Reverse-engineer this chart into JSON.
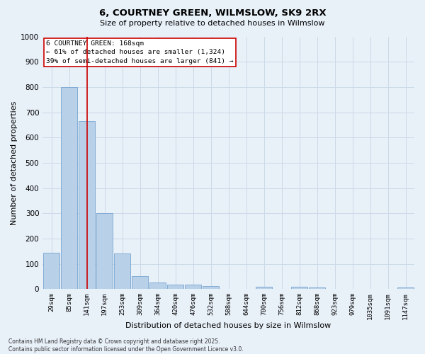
{
  "title_line1": "6, COURTNEY GREEN, WILMSLOW, SK9 2RX",
  "title_line2": "Size of property relative to detached houses in Wilmslow",
  "xlabel": "Distribution of detached houses by size in Wilmslow",
  "ylabel": "Number of detached properties",
  "bar_color": "#b8d0e8",
  "bar_edge_color": "#6699cc",
  "bin_labels": [
    "29sqm",
    "85sqm",
    "141sqm",
    "197sqm",
    "253sqm",
    "309sqm",
    "364sqm",
    "420sqm",
    "476sqm",
    "532sqm",
    "588sqm",
    "644sqm",
    "700sqm",
    "756sqm",
    "812sqm",
    "868sqm",
    "923sqm",
    "979sqm",
    "1035sqm",
    "1091sqm",
    "1147sqm"
  ],
  "bar_values": [
    145,
    800,
    665,
    300,
    140,
    52,
    27,
    18,
    18,
    13,
    0,
    0,
    10,
    0,
    10,
    7,
    0,
    0,
    0,
    0,
    7
  ],
  "ylim": [
    0,
    1000
  ],
  "yticks": [
    0,
    100,
    200,
    300,
    400,
    500,
    600,
    700,
    800,
    900,
    1000
  ],
  "vline_bin_index": 2,
  "annotation_text_line1": "6 COURTNEY GREEN: 168sqm",
  "annotation_text_line2": "← 61% of detached houses are smaller (1,324)",
  "annotation_text_line3": "39% of semi-detached houses are larger (841) →",
  "annotation_box_color": "#ffffff",
  "annotation_box_edge_color": "#cc0000",
  "vline_color": "#cc0000",
  "grid_color": "#ccd9e8",
  "background_color": "#e8f0f8",
  "fig_background_color": "#e8f0f8",
  "footer_line1": "Contains HM Land Registry data © Crown copyright and database right 2025.",
  "footer_line2": "Contains public sector information licensed under the Open Government Licence v3.0."
}
